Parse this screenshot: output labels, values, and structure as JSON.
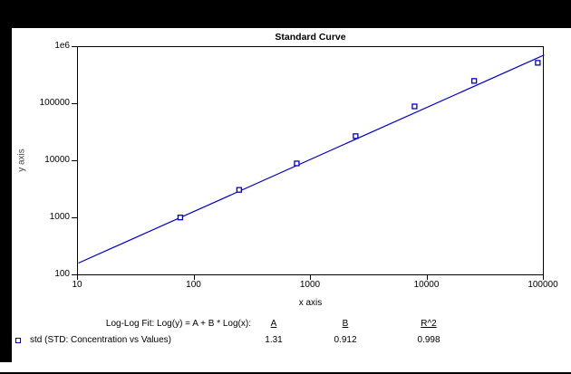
{
  "window": {
    "background": "#000000",
    "panel": "#ffffff",
    "accent": "#0000cc"
  },
  "chart_data": {
    "type": "scatter",
    "title": "Standard Curve",
    "xlabel": "x axis",
    "ylabel": "y axis",
    "x_scale": "log",
    "y_scale": "log",
    "xlim": [
      10,
      100000
    ],
    "ylim": [
      100,
      1000000
    ],
    "x_ticks": [
      "10",
      "100",
      "1000",
      "10000",
      "100000"
    ],
    "y_ticks": [
      "100",
      "1000",
      "10000",
      "100000",
      "1e6"
    ],
    "grid": false,
    "legend_position": "bottom-left",
    "series": [
      {
        "name": "std (STD: Concentration vs Values)",
        "marker": "open-square",
        "color": "#0000cc",
        "points": [
          {
            "x": 75,
            "y": 1050
          },
          {
            "x": 240,
            "y": 3200
          },
          {
            "x": 750,
            "y": 9300
          },
          {
            "x": 2400,
            "y": 28000
          },
          {
            "x": 7700,
            "y": 93000
          },
          {
            "x": 25000,
            "y": 260000
          },
          {
            "x": 88000,
            "y": 540000
          }
        ]
      }
    ],
    "fit_line": {
      "model": "Log(y) = A + B * Log(x)",
      "A": 1.31,
      "B": 0.912,
      "R2": 0.998,
      "color": "#0000cc"
    }
  },
  "annotation": {
    "fit_label": "Log-Log Fit: Log(y) = A + B * Log(x):",
    "columns": {
      "a": "A",
      "b": "B",
      "r2": "R^2"
    },
    "values": {
      "a": "1.31",
      "b": "0.912",
      "r2": "0.998"
    },
    "series_label": "std (STD: Concentration vs Values)"
  }
}
